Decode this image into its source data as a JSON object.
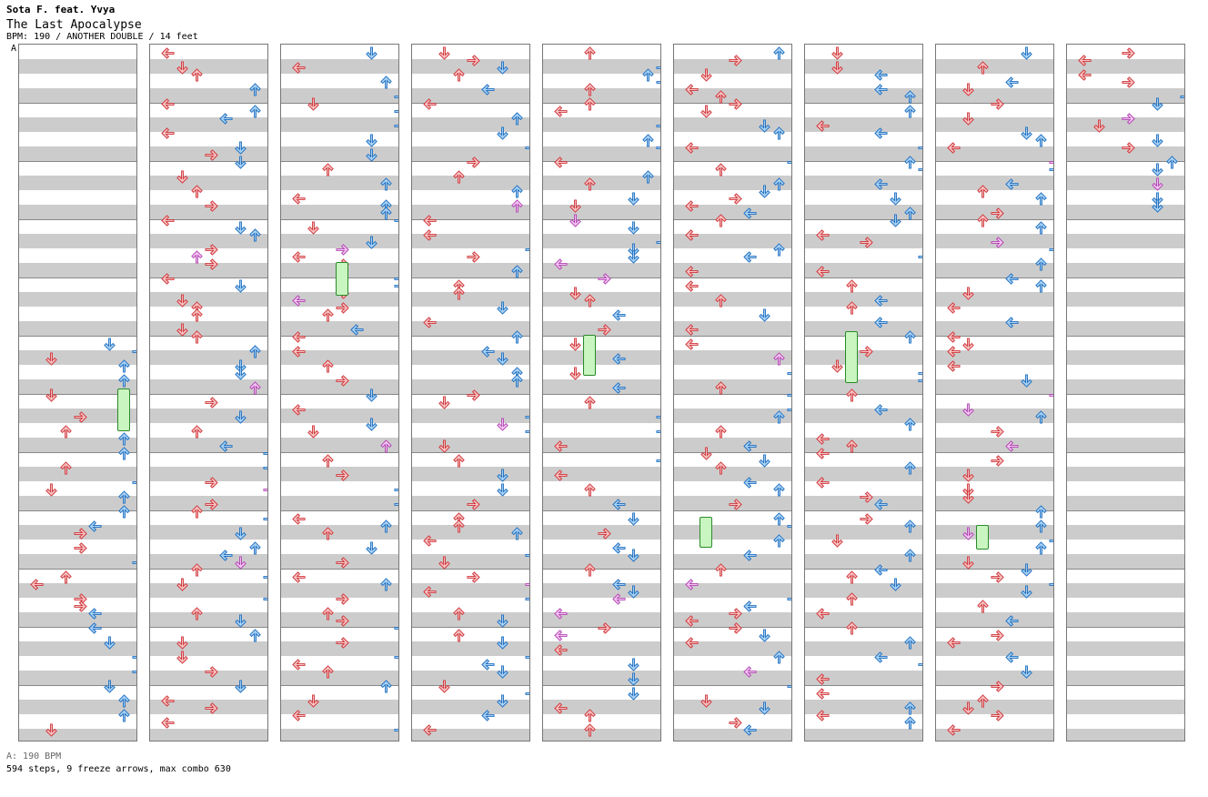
{
  "header": {
    "artist": "Sota F. feat. Yvya",
    "title": "The Last Apocalypse",
    "meta": "BPM: 190 / ANOTHER DOUBLE / 14 feet",
    "marker": "A"
  },
  "footer": {
    "bpm_note": "A: 190 BPM",
    "stats": "594 steps, 9 freeze arrows, max combo 630"
  },
  "colors": {
    "red_fill": "#f6c3c3",
    "red_stroke": "#d0353a",
    "blue_fill": "#a9d2f5",
    "blue_stroke": "#1f6fc0",
    "pink_fill": "#f4c6f4",
    "pink_stroke": "#b244b2",
    "freeze_fill": "#c9f5c0",
    "freeze_stroke": "#2a8a2a"
  },
  "chart": {
    "columns": 9,
    "lanes_per_column": 8,
    "lane_icons": [
      "left-arrow-icon",
      "down-arrow-icon",
      "up-arrow-icon",
      "right-arrow-icon",
      "left-arrow-icon",
      "down-arrow-icon",
      "up-arrow-icon",
      "right-arrow-icon"
    ],
    "lane_colors": [
      "red",
      "red",
      "red",
      "red",
      "blue",
      "blue",
      "blue",
      "blue"
    ]
  }
}
